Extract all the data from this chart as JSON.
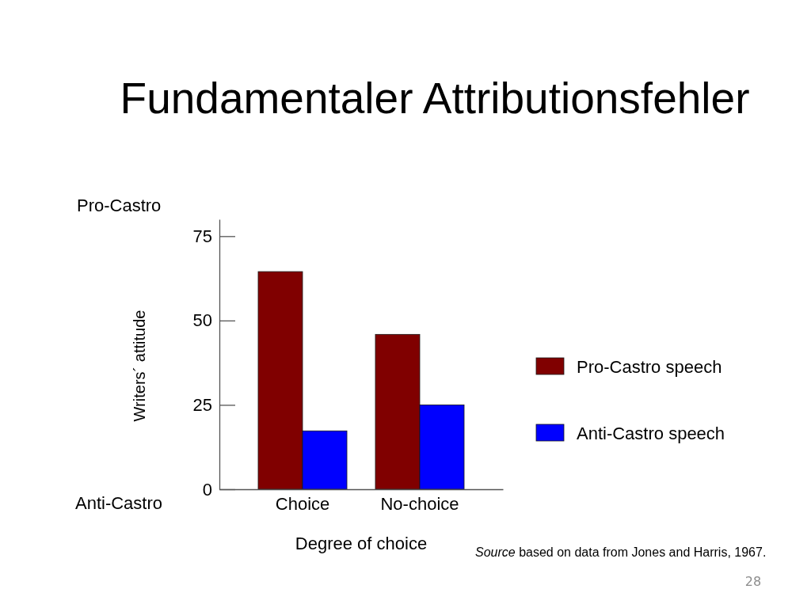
{
  "chart_data": {
    "type": "bar",
    "title": "Fundamentaler Attributionsfehler",
    "xlabel": "Degree of choice",
    "ylabel": "Writers´ attitude",
    "categories": [
      "Choice",
      "No-choice"
    ],
    "series": [
      {
        "name": "Pro-Castro speech",
        "color": "#800000",
        "values": [
          64.5,
          45.9
        ]
      },
      {
        "name": "Anti-Castro speech",
        "color": "#0000ff",
        "values": [
          17.3,
          25
        ]
      }
    ],
    "ylim": [
      0,
      80
    ],
    "yticks": [
      0,
      25,
      50,
      75
    ],
    "grid": false,
    "legend": "right",
    "annotations": [
      "Pro-Castro",
      "Anti-Castro",
      "Source based on data from Jones and Harris, 1967.",
      "28"
    ]
  }
}
